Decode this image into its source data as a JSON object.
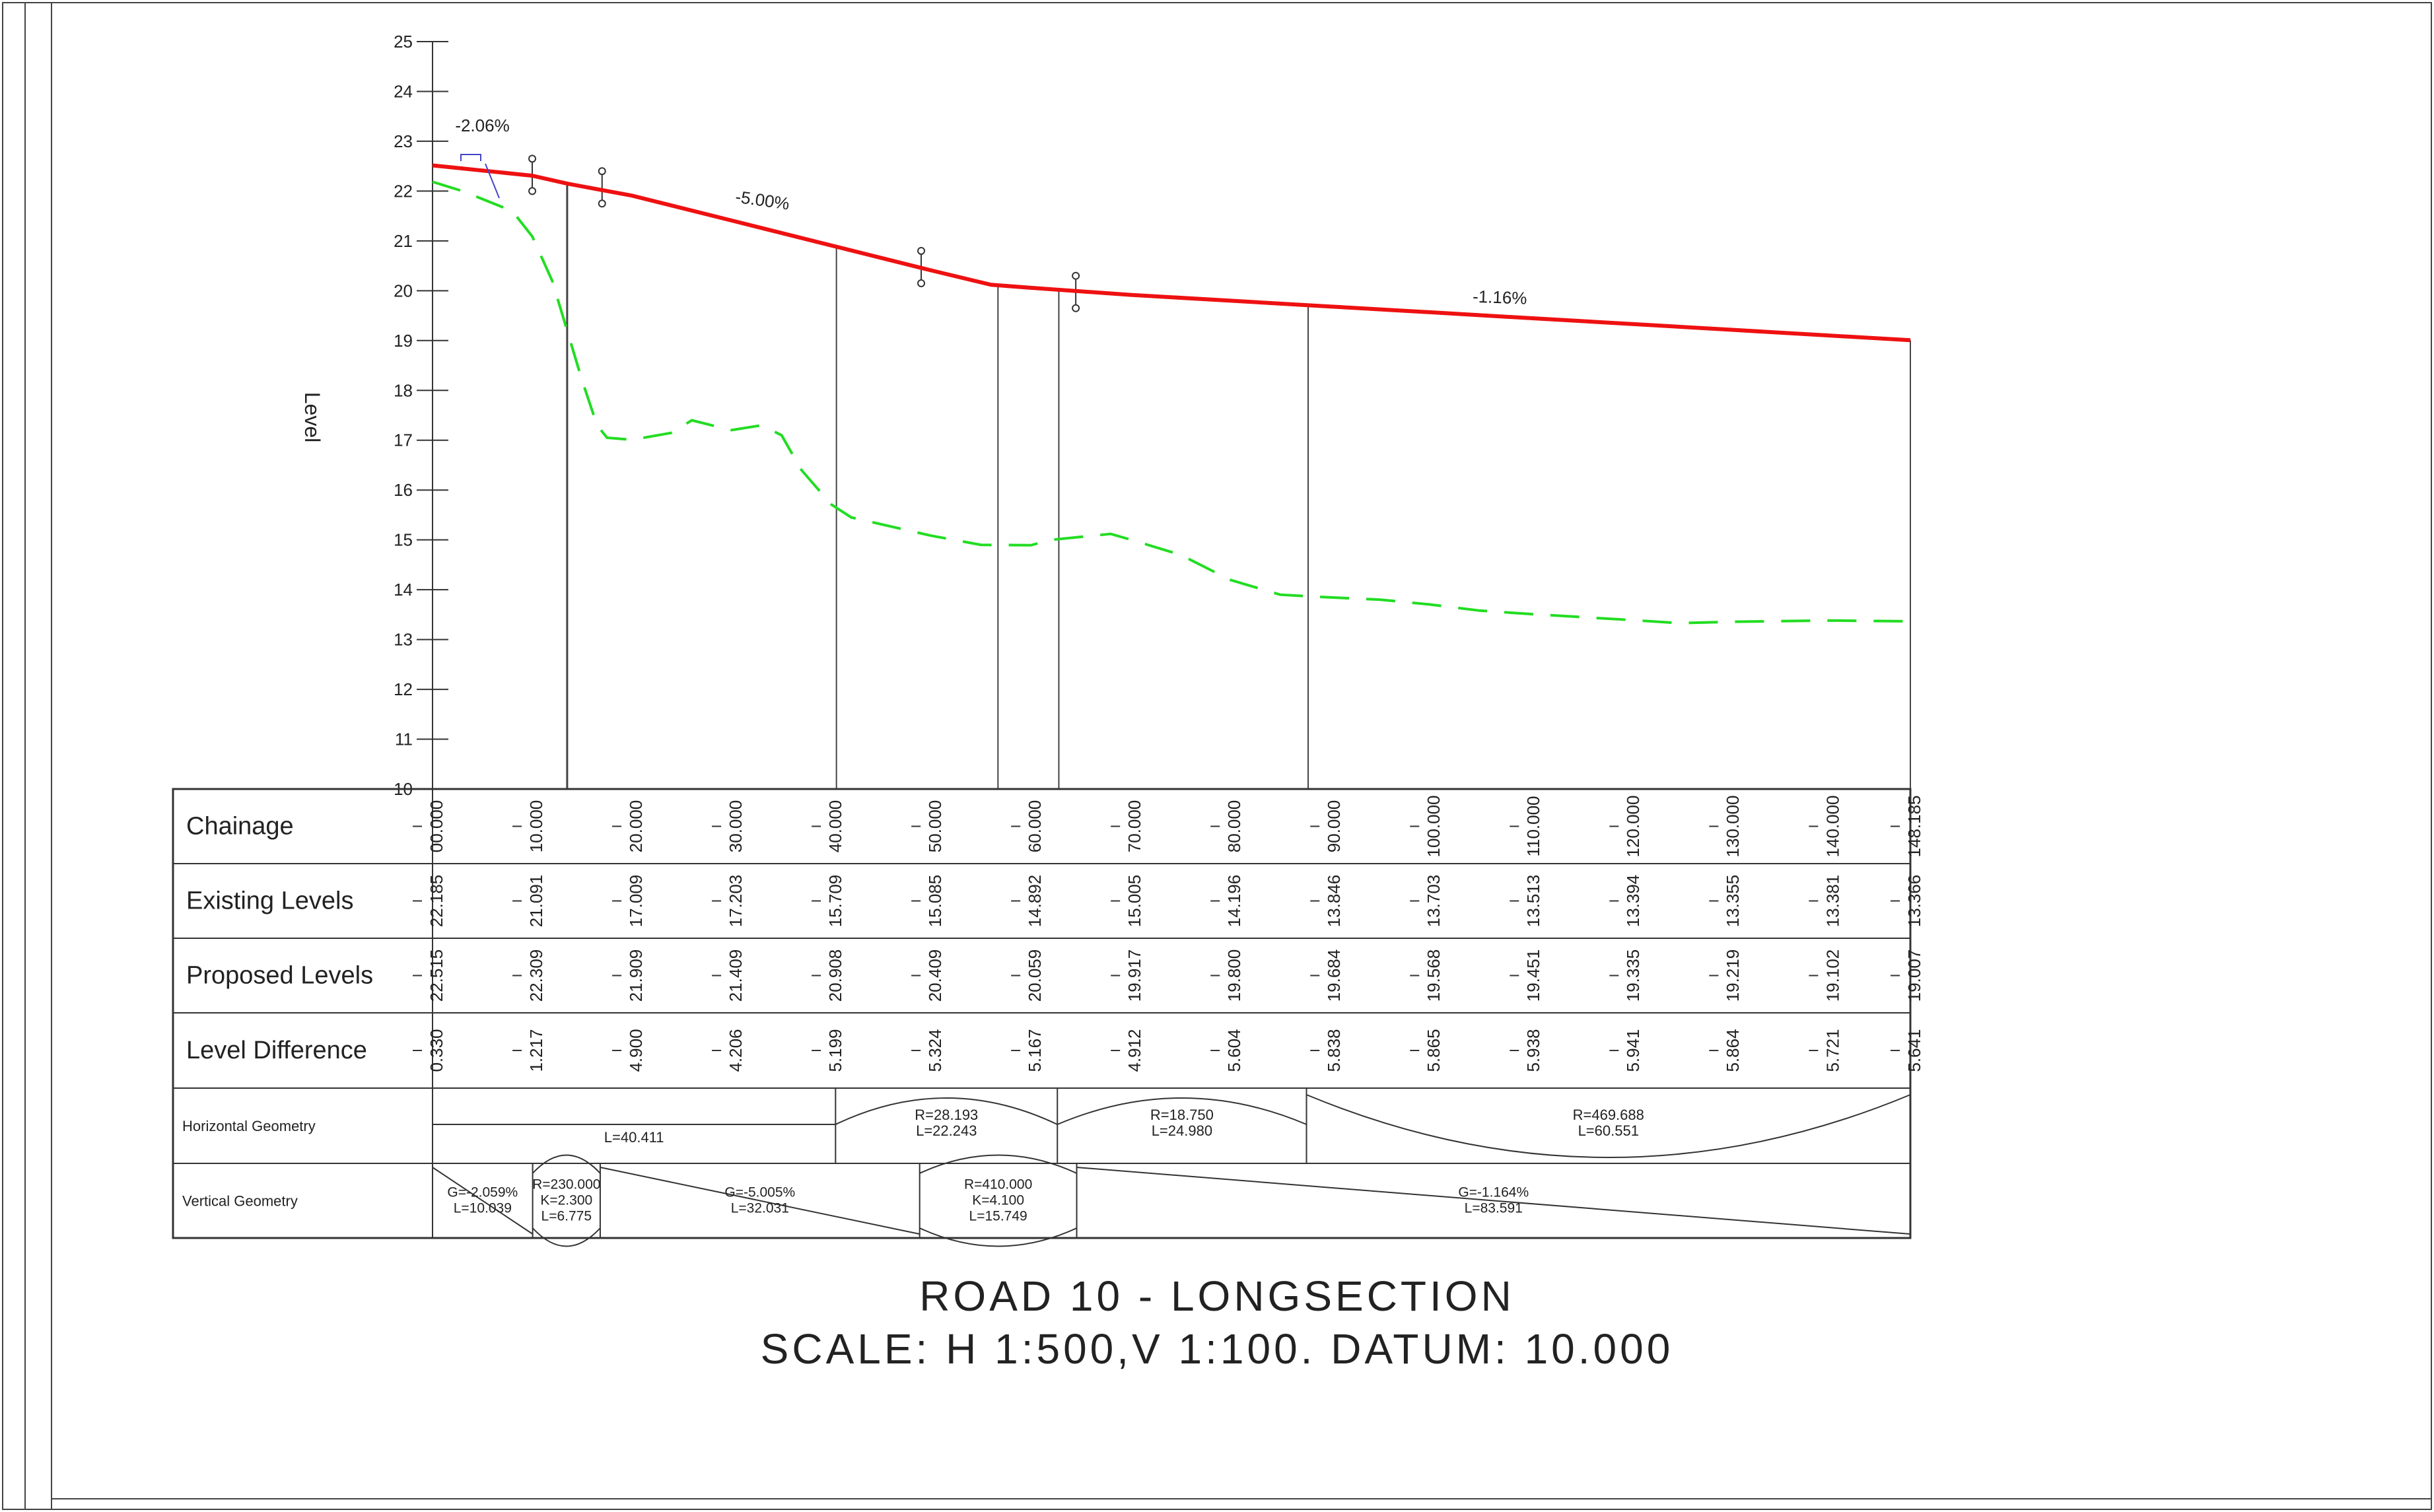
{
  "drawing": {
    "title": "ROAD 10 - LONGSECTION",
    "scale_line": "SCALE: H 1:500,V 1:100. DATUM: 10.000",
    "y_axis_label": "Level"
  },
  "chart_data": {
    "type": "line",
    "xlim": [
      0,
      148.185
    ],
    "ylim": [
      10,
      25
    ],
    "y_ticks": [
      "10",
      "11",
      "12",
      "13",
      "14",
      "15",
      "16",
      "17",
      "18",
      "19",
      "20",
      "21",
      "22",
      "23",
      "24",
      "25"
    ],
    "series": [
      {
        "key": "proposed",
        "color": "#ee1111",
        "style": "solid",
        "points": [
          [
            0,
            22.515
          ],
          [
            10,
            22.309
          ],
          [
            13.5,
            22.15
          ],
          [
            20,
            21.909
          ],
          [
            30,
            21.409
          ],
          [
            40,
            20.908
          ],
          [
            50,
            20.409
          ],
          [
            56,
            20.12
          ],
          [
            60,
            20.059
          ],
          [
            70,
            19.917
          ],
          [
            80,
            19.8
          ],
          [
            90,
            19.684
          ],
          [
            100,
            19.568
          ],
          [
            110,
            19.451
          ],
          [
            120,
            19.335
          ],
          [
            130,
            19.219
          ],
          [
            140,
            19.102
          ],
          [
            148.185,
            19.007
          ]
        ]
      },
      {
        "key": "existing",
        "color": "#22dd22",
        "style": "dashed",
        "points": [
          [
            0,
            22.185
          ],
          [
            3,
            22.0
          ],
          [
            8,
            21.6
          ],
          [
            10,
            21.091
          ],
          [
            12,
            20.2
          ],
          [
            13.5,
            19.2
          ],
          [
            15,
            18.2
          ],
          [
            16.5,
            17.3
          ],
          [
            17.5,
            17.05
          ],
          [
            20,
            17.009
          ],
          [
            24,
            17.15
          ],
          [
            26,
            17.4
          ],
          [
            29,
            17.25
          ],
          [
            30,
            17.203
          ],
          [
            33,
            17.3
          ],
          [
            35,
            17.1
          ],
          [
            37,
            16.4
          ],
          [
            40,
            15.709
          ],
          [
            42,
            15.45
          ],
          [
            50,
            15.085
          ],
          [
            55,
            14.9
          ],
          [
            60,
            14.892
          ],
          [
            62,
            15.0
          ],
          [
            68,
            15.12
          ],
          [
            70,
            15.005
          ],
          [
            75,
            14.7
          ],
          [
            80,
            14.196
          ],
          [
            85,
            13.9
          ],
          [
            90,
            13.846
          ],
          [
            95,
            13.8
          ],
          [
            100,
            13.703
          ],
          [
            105,
            13.58
          ],
          [
            110,
            13.513
          ],
          [
            120,
            13.394
          ],
          [
            125,
            13.33
          ],
          [
            130,
            13.355
          ],
          [
            140,
            13.381
          ],
          [
            148.185,
            13.366
          ]
        ]
      }
    ],
    "grade_labels": [
      {
        "text": "-2.06%",
        "x": 5,
        "y": 23.2
      },
      {
        "text": "-5.00%",
        "x": 33,
        "y": 21.7
      },
      {
        "text": "-1.16%",
        "x": 107,
        "y": 19.75
      }
    ],
    "vertical_lines": [
      13.5,
      40.5,
      56.7,
      62.8,
      87.8
    ],
    "markers": [
      {
        "x": 10,
        "y_top": 22.65,
        "y_bottom": 22.0
      },
      {
        "x": 17,
        "y_top": 22.4,
        "y_bottom": 21.75
      },
      {
        "x": 49,
        "y_top": 20.8,
        "y_bottom": 20.15
      },
      {
        "x": 64.5,
        "y_top": 20.3,
        "y_bottom": 19.65
      }
    ]
  },
  "table": {
    "rows": [
      {
        "label": "Chainage",
        "values": [
          "00.000",
          "10.000",
          "20.000",
          "30.000",
          "40.000",
          "50.000",
          "60.000",
          "70.000",
          "80.000",
          "90.000",
          "100.000",
          "110.000",
          "120.000",
          "130.000",
          "140.000",
          "148.185"
        ]
      },
      {
        "label": "Existing Levels",
        "values": [
          "22.185",
          "21.091",
          "17.009",
          "17.203",
          "15.709",
          "15.085",
          "14.892",
          "15.005",
          "14.196",
          "13.846",
          "13.703",
          "13.513",
          "13.394",
          "13.355",
          "13.381",
          "13.366"
        ]
      },
      {
        "label": "Proposed Levels",
        "values": [
          "22.515",
          "22.309",
          "21.909",
          "21.409",
          "20.908",
          "20.409",
          "20.059",
          "19.917",
          "19.800",
          "19.684",
          "19.568",
          "19.451",
          "19.335",
          "19.219",
          "19.102",
          "19.007"
        ]
      },
      {
        "label": "Level Difference",
        "values": [
          "0.330",
          "1.217",
          "4.900",
          "4.206",
          "5.199",
          "5.324",
          "5.167",
          "4.912",
          "5.604",
          "5.838",
          "5.865",
          "5.938",
          "5.941",
          "5.864",
          "5.721",
          "5.641"
        ]
      }
    ],
    "horizontal_geometry": {
      "label": "Horizontal Geometry",
      "segments": [
        {
          "kind": "straight",
          "from": 0,
          "to": 40.411,
          "line1": "L=40.411",
          "line2": ""
        },
        {
          "kind": "arc-up",
          "from": 40.411,
          "to": 62.654,
          "line1": "R=28.193",
          "line2": "L=22.243"
        },
        {
          "kind": "arc-up",
          "from": 62.654,
          "to": 87.634,
          "line1": "R=18.750",
          "line2": "L=24.980"
        },
        {
          "kind": "arc-down",
          "from": 87.634,
          "to": 148.185,
          "line1": "R=469.688",
          "line2": "L=60.551"
        }
      ]
    },
    "vertical_geometry": {
      "label": "Vertical Geometry",
      "segments": [
        {
          "kind": "grade",
          "from": 0,
          "to": 10.039,
          "lines": [
            "G=-2.059%",
            "L=10.039"
          ]
        },
        {
          "kind": "curve",
          "from": 10.039,
          "to": 16.814,
          "lines": [
            "R=230.000",
            "K=2.300",
            "L=6.775"
          ]
        },
        {
          "kind": "grade",
          "from": 16.814,
          "to": 48.845,
          "lines": [
            "G=-5.005%",
            "L=32.031"
          ]
        },
        {
          "kind": "curve",
          "from": 48.845,
          "to": 64.594,
          "lines": [
            "R=410.000",
            "K=4.100",
            "L=15.749"
          ]
        },
        {
          "kind": "grade",
          "from": 64.594,
          "to": 148.185,
          "lines": [
            "G=-1.164%",
            "L=83.591"
          ]
        }
      ]
    }
  }
}
